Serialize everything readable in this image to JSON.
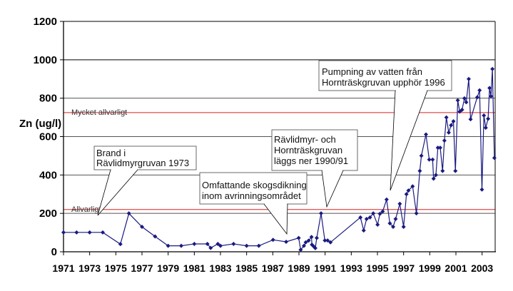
{
  "chart_data": {
    "type": "line",
    "title": "",
    "xlabel": "",
    "ylabel": "Zn (ug/l)",
    "xlim": [
      1971,
      2004
    ],
    "ylim": [
      0,
      1200
    ],
    "x_ticks": [
      1971,
      1973,
      1975,
      1977,
      1979,
      1981,
      1983,
      1985,
      1987,
      1989,
      1991,
      1993,
      1995,
      1997,
      1999,
      2001,
      2003
    ],
    "y_ticks": [
      0,
      200,
      400,
      600,
      800,
      1000,
      1200
    ],
    "gridlines": [
      200,
      400,
      600,
      800,
      1000,
      1200
    ],
    "grid": true,
    "legend": "none",
    "series": [
      {
        "name": "Zn",
        "color": "#1a1a80",
        "points": [
          [
            1971,
            101
          ],
          [
            1972,
            101
          ],
          [
            1973,
            101
          ],
          [
            1974,
            101
          ],
          [
            1975.35,
            40
          ],
          [
            1976,
            200
          ],
          [
            1977,
            130
          ],
          [
            1978,
            80
          ],
          [
            1979,
            31
          ],
          [
            1980,
            31
          ],
          [
            1981,
            41
          ],
          [
            1982,
            41
          ],
          [
            1982.25,
            20
          ],
          [
            1982.8,
            41
          ],
          [
            1983,
            31
          ],
          [
            1984,
            41
          ],
          [
            1985,
            31
          ],
          [
            1985.93,
            31
          ],
          [
            1987.02,
            62
          ],
          [
            1988.02,
            52
          ],
          [
            1988.98,
            72
          ],
          [
            1989.13,
            10
          ],
          [
            1989.38,
            31
          ],
          [
            1989.52,
            49
          ],
          [
            1989.74,
            58
          ],
          [
            1989.96,
            77
          ],
          [
            1989.99,
            37
          ],
          [
            1990.14,
            27
          ],
          [
            1990.25,
            19
          ],
          [
            1990.36,
            72
          ],
          [
            1990.69,
            200
          ],
          [
            1990.98,
            59
          ],
          [
            1991.19,
            59
          ],
          [
            1991.41,
            49
          ],
          [
            1993.7,
            179
          ],
          [
            1993.95,
            111
          ],
          [
            1994.17,
            171
          ],
          [
            1994.43,
            179
          ],
          [
            1994.68,
            200
          ],
          [
            1995.01,
            141
          ],
          [
            1995.19,
            198
          ],
          [
            1995.4,
            210
          ],
          [
            1995.7,
            272
          ],
          [
            1995.95,
            148
          ],
          [
            1996.2,
            130
          ],
          [
            1996.39,
            171
          ],
          [
            1996.71,
            250
          ],
          [
            1997.0,
            130
          ],
          [
            1997.22,
            300
          ],
          [
            1997.37,
            319
          ],
          [
            1997.69,
            341
          ],
          [
            1997.98,
            200
          ],
          [
            1998.24,
            421
          ],
          [
            1998.36,
            500
          ],
          [
            1998.71,
            611
          ],
          [
            1998.96,
            480
          ],
          [
            1999.22,
            480
          ],
          [
            1999.29,
            381
          ],
          [
            1999.47,
            400
          ],
          [
            1999.62,
            542
          ],
          [
            1999.8,
            542
          ],
          [
            1999.98,
            421
          ],
          [
            2000.12,
            579
          ],
          [
            2000.27,
            700
          ],
          [
            2000.45,
            621
          ],
          [
            2000.63,
            659
          ],
          [
            2000.81,
            680
          ],
          [
            2000.96,
            421
          ],
          [
            2001.14,
            789
          ],
          [
            2001.29,
            730
          ],
          [
            2001.47,
            740
          ],
          [
            2001.65,
            799
          ],
          [
            2001.79,
            779
          ],
          [
            2001.98,
            900
          ],
          [
            2002.12,
            690
          ],
          [
            2002.63,
            805
          ],
          [
            2002.81,
            841
          ],
          [
            2002.99,
            324
          ],
          [
            2003.14,
            710
          ],
          [
            2003.28,
            646
          ],
          [
            2003.46,
            693
          ],
          [
            2003.57,
            853
          ],
          [
            2003.68,
            810
          ],
          [
            2003.79,
            952
          ],
          [
            2003.94,
            489
          ]
        ]
      }
    ],
    "thresholds": [
      {
        "label": "Allvarligt",
        "value": 220,
        "color": "#e02020"
      },
      {
        "label": "Mycket allvarligt",
        "value": 725,
        "color": "#e02020"
      }
    ],
    "annotations": [
      {
        "lines": [
          "Brand i",
          "Rävlidmyrgruvan 1973"
        ]
      },
      {
        "lines": [
          "Omfattande skogsdikning",
          "inom avrinningsområdet"
        ]
      },
      {
        "lines": [
          "Rävlidmyr- och",
          "Hornträskgruvan",
          "läggs ner 1990/91"
        ]
      },
      {
        "lines": [
          "Pumpning av vatten från",
          "Hornträskgruvan upphör 1996"
        ]
      }
    ]
  }
}
